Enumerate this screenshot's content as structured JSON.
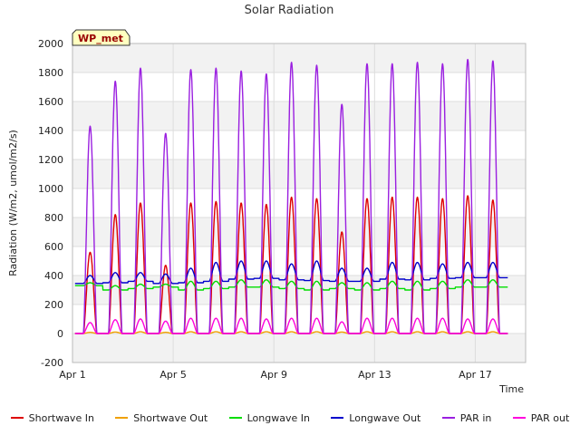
{
  "chart_data": {
    "type": "line",
    "title": "Solar Radiation",
    "site_label": "WP_met",
    "xlabel": "Time",
    "ylabel": "Radiation (W/m2, umol/m2/s)",
    "ylim": [
      -200,
      2000
    ],
    "yticks": [
      -200,
      0,
      200,
      400,
      600,
      800,
      1000,
      1200,
      1400,
      1600,
      1800,
      2000
    ],
    "xlim_days": [
      1,
      19
    ],
    "xticks": [
      {
        "day": 1,
        "label": "Apr 1"
      },
      {
        "day": 5,
        "label": "Apr 5"
      },
      {
        "day": 9,
        "label": "Apr 9"
      },
      {
        "day": 13,
        "label": "Apr 13"
      },
      {
        "day": 17,
        "label": "Apr 17"
      }
    ],
    "grid": true,
    "legend_position": "bottom",
    "days": [
      1.7,
      2.7,
      3.7,
      4.7,
      5.7,
      6.7,
      7.7,
      8.7,
      9.7,
      10.7,
      11.7,
      12.7,
      13.7,
      14.7,
      15.7,
      16.7,
      17.7
    ],
    "series": [
      {
        "name": "Shortwave In",
        "color": "#dd0000",
        "daily_peak": [
          560,
          820,
          900,
          470,
          900,
          910,
          900,
          890,
          940,
          930,
          700,
          930,
          940,
          940,
          930,
          950,
          920
        ]
      },
      {
        "name": "Shortwave Out",
        "color": "#f0a000",
        "daily_peak": [
          8,
          10,
          12,
          8,
          12,
          12,
          12,
          12,
          12,
          12,
          10,
          12,
          12,
          12,
          12,
          12,
          12
        ]
      },
      {
        "name": "Longwave In",
        "color": "#00dd00",
        "daily_mean": [
          330,
          300,
          310,
          320,
          300,
          310,
          320,
          320,
          310,
          300,
          310,
          300,
          310,
          300,
          310,
          320,
          320
        ],
        "daily_peak": [
          350,
          330,
          340,
          340,
          360,
          360,
          370,
          370,
          360,
          360,
          350,
          350,
          360,
          360,
          360,
          370,
          370
        ]
      },
      {
        "name": "Longwave Out",
        "color": "#0000cc",
        "daily_mean": [
          345,
          350,
          360,
          345,
          350,
          360,
          375,
          380,
          370,
          365,
          360,
          360,
          375,
          370,
          380,
          385,
          385
        ],
        "daily_peak": [
          400,
          420,
          420,
          410,
          450,
          490,
          500,
          500,
          480,
          500,
          450,
          450,
          490,
          490,
          480,
          490,
          490
        ]
      },
      {
        "name": "PAR in",
        "color": "#9a1fe0",
        "daily_peak": [
          1430,
          1740,
          1830,
          1380,
          1820,
          1830,
          1810,
          1790,
          1870,
          1850,
          1580,
          1860,
          1860,
          1870,
          1860,
          1890,
          1880
        ]
      },
      {
        "name": "PAR out",
        "color": "#ff00dd",
        "daily_peak": [
          75,
          95,
          100,
          85,
          105,
          105,
          105,
          100,
          105,
          105,
          80,
          105,
          105,
          105,
          105,
          100,
          100
        ]
      }
    ]
  }
}
